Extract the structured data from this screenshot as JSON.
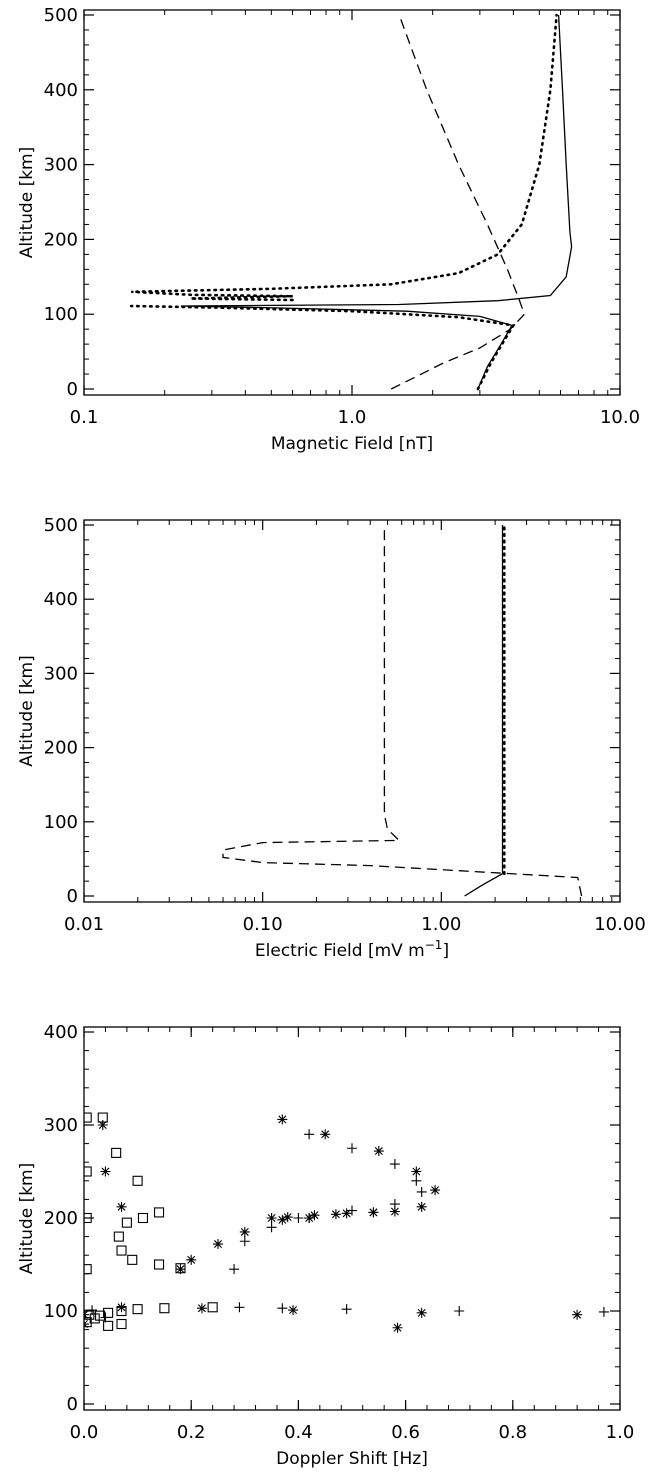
{
  "chart_data": [
    {
      "type": "line",
      "xlabel": "Magnetic Field [nT]",
      "ylabel": "Altitude [km]",
      "xscale": "log",
      "xlim": [
        0.1,
        10.0
      ],
      "ylim": [
        0,
        500
      ],
      "xticks": [
        "0.1",
        "1.0",
        "10.0"
      ],
      "yticks": [
        "0",
        "100",
        "200",
        "300",
        "400",
        "500"
      ],
      "series": [
        {
          "style": "solid",
          "points": [
            [
              2.95,
              0
            ],
            [
              3.2,
              30
            ],
            [
              3.6,
              60
            ],
            [
              3.95,
              85
            ],
            [
              3.0,
              97
            ],
            [
              1.6,
              104
            ],
            [
              0.45,
              109
            ],
            [
              0.23,
              111
            ],
            [
              1.5,
              113
            ],
            [
              3.5,
              118
            ],
            [
              5.5,
              125
            ],
            [
              6.3,
              150
            ],
            [
              6.6,
              190
            ],
            [
              6.5,
              210
            ],
            [
              6.3,
              300
            ],
            [
              6.1,
              400
            ],
            [
              5.9,
              500
            ]
          ]
        },
        {
          "style": "dashed",
          "points": [
            [
              1.4,
              0
            ],
            [
              1.7,
              15
            ],
            [
              2.2,
              35
            ],
            [
              3.0,
              55
            ],
            [
              3.9,
              80
            ],
            [
              4.4,
              100
            ],
            [
              4.2,
              120
            ],
            [
              3.8,
              160
            ],
            [
              3.2,
              220
            ],
            [
              2.5,
              300
            ],
            [
              1.9,
              400
            ],
            [
              1.5,
              500
            ]
          ]
        },
        {
          "style": "dotted",
          "points": [
            [
              2.95,
              0
            ],
            [
              3.3,
              35
            ],
            [
              3.7,
              65
            ],
            [
              4.0,
              85
            ],
            [
              2.5,
              96
            ],
            [
              1.0,
              104
            ],
            [
              0.3,
              109
            ],
            [
              0.15,
              111
            ]
          ]
        },
        {
          "style": "dotted",
          "points": [
            [
              0.6,
              119
            ],
            [
              0.25,
              121
            ],
            [
              0.6,
              124
            ],
            [
              0.25,
              126
            ],
            [
              0.15,
              130
            ],
            [
              0.5,
              134
            ],
            [
              1.4,
              140
            ],
            [
              2.5,
              155
            ],
            [
              3.5,
              180
            ],
            [
              4.3,
              220
            ],
            [
              5.0,
              300
            ],
            [
              5.5,
              400
            ],
            [
              5.8,
              500
            ]
          ]
        }
      ]
    },
    {
      "type": "line",
      "xlabel": "Electric Field [mV m",
      "xlabel_sup": "−1",
      "xlabel_tail": "]",
      "ylabel": "Altitude [km]",
      "xscale": "log",
      "xlim": [
        0.01,
        10.0
      ],
      "ylim": [
        0,
        500
      ],
      "xticks": [
        "0.01",
        "0.10",
        "1.00",
        "10.00"
      ],
      "yticks": [
        "0",
        "100",
        "200",
        "300",
        "400",
        "500"
      ],
      "series": [
        {
          "style": "solid",
          "points": [
            [
              1.35,
              0
            ],
            [
              1.7,
              15
            ],
            [
              2.2,
              30
            ],
            [
              2.2,
              100
            ],
            [
              2.2,
              300
            ],
            [
              2.2,
              500
            ]
          ]
        },
        {
          "style": "dotted",
          "points": [
            [
              2.25,
              30
            ],
            [
              2.25,
              200
            ],
            [
              2.25,
              500
            ]
          ]
        },
        {
          "style": "dashed",
          "points": [
            [
              6.1,
              0
            ],
            [
              5.8,
              25
            ],
            [
              0.4,
              41
            ],
            [
              0.1,
              45
            ],
            [
              0.06,
              52
            ],
            [
              0.06,
              62
            ],
            [
              0.1,
              72
            ],
            [
              0.58,
              75
            ],
            [
              0.5,
              90
            ],
            [
              0.48,
              110
            ],
            [
              0.48,
              300
            ],
            [
              0.48,
              500
            ]
          ]
        }
      ]
    },
    {
      "type": "scatter",
      "xlabel": "Doppler Shift [Hz]",
      "ylabel": "Altitude [km]",
      "xlim": [
        0.0,
        1.0
      ],
      "ylim": [
        0,
        400
      ],
      "xticks": [
        "0.0",
        "0.2",
        "0.4",
        "0.6",
        "0.8",
        "1.0"
      ],
      "yticks": [
        "0",
        "100",
        "200",
        "300",
        "400"
      ],
      "series": [
        {
          "marker": "square",
          "points": [
            [
              0.005,
              145
            ],
            [
              0.005,
              200
            ],
            [
              0.005,
              250
            ],
            [
              0.005,
              308
            ],
            [
              0.035,
              308
            ],
            [
              0.06,
              270
            ],
            [
              0.1,
              240
            ],
            [
              0.14,
              206
            ],
            [
              0.11,
              200
            ],
            [
              0.08,
              195
            ],
            [
              0.065,
              180
            ],
            [
              0.07,
              165
            ],
            [
              0.09,
              155
            ],
            [
              0.14,
              150
            ],
            [
              0.18,
              146
            ],
            [
              0.01,
              96
            ],
            [
              0.02,
              92
            ],
            [
              0.03,
              95
            ],
            [
              0.045,
              98
            ],
            [
              0.045,
              84
            ],
            [
              0.07,
              86
            ],
            [
              0.07,
              100
            ],
            [
              0.1,
              102
            ],
            [
              0.15,
              103
            ],
            [
              0.24,
              104
            ],
            [
              0.005,
              88
            ]
          ]
        },
        {
          "marker": "asterisk",
          "points": [
            [
              0.37,
              306
            ],
            [
              0.45,
              290
            ],
            [
              0.55,
              272
            ],
            [
              0.62,
              250
            ],
            [
              0.655,
              230
            ],
            [
              0.63,
              212
            ],
            [
              0.58,
              207
            ],
            [
              0.54,
              206
            ],
            [
              0.47,
              204
            ],
            [
              0.42,
              200
            ],
            [
              0.37,
              198
            ],
            [
              0.3,
              185
            ],
            [
              0.25,
              172
            ],
            [
              0.2,
              155
            ],
            [
              0.18,
              145
            ],
            [
              0.035,
              300
            ],
            [
              0.04,
              250
            ],
            [
              0.07,
              212
            ],
            [
              0.35,
              200
            ],
            [
              0.38,
              201
            ],
            [
              0.43,
              203
            ],
            [
              0.49,
              205
            ],
            [
              0.54,
              206
            ],
            [
              0.0,
              86
            ],
            [
              0.0,
              96
            ],
            [
              0.07,
              104
            ],
            [
              0.22,
              103
            ],
            [
              0.39,
              101
            ],
            [
              0.63,
              98
            ],
            [
              0.92,
              96
            ],
            [
              0.585,
              82
            ]
          ]
        },
        {
          "marker": "plus",
          "points": [
            [
              0.28,
              145
            ],
            [
              0.3,
              175
            ],
            [
              0.35,
              190
            ],
            [
              0.42,
              200
            ],
            [
              0.5,
              208
            ],
            [
              0.58,
              215
            ],
            [
              0.63,
              228
            ],
            [
              0.62,
              240
            ],
            [
              0.58,
              258
            ],
            [
              0.5,
              275
            ],
            [
              0.42,
              290
            ],
            [
              0.4,
              200
            ],
            [
              0.29,
              104
            ],
            [
              0.37,
              103
            ],
            [
              0.49,
              102
            ],
            [
              0.7,
              100
            ],
            [
              0.97,
              99
            ],
            [
              0.015,
              101
            ],
            [
              0.04,
              93
            ]
          ]
        }
      ]
    }
  ]
}
